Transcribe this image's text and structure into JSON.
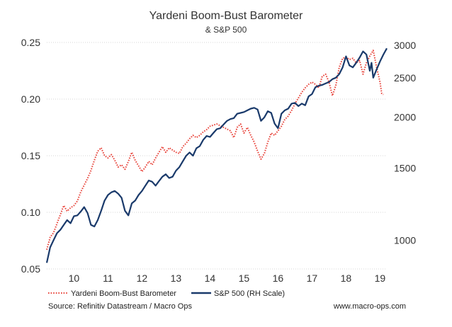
{
  "chart_data": {
    "type": "line",
    "title": "Yardeni Boom-Bust Barometer",
    "subtitle": "& S&P 500",
    "x_ticks": [
      "10",
      "11",
      "12",
      "13",
      "14",
      "15",
      "16",
      "17",
      "18",
      "19"
    ],
    "x_tick_values": [
      10,
      11,
      12,
      13,
      14,
      15,
      16,
      17,
      18,
      19
    ],
    "xlim": [
      9.2,
      19.2
    ],
    "left_axis": {
      "ticks": [
        "0.05",
        "0.10",
        "0.15",
        "0.20",
        "0.25"
      ],
      "tick_values": [
        0.05,
        0.1,
        0.15,
        0.2,
        0.25
      ],
      "ylim": [
        0.05,
        0.25
      ]
    },
    "right_axis": {
      "scale": "log",
      "ticks": [
        "1000",
        "1500",
        "2000",
        "2500",
        "3000"
      ],
      "tick_values": [
        1000,
        1500,
        2000,
        2500,
        3000
      ],
      "ylim": [
        850,
        3050
      ]
    },
    "grid": true,
    "series": [
      {
        "name": "Yardeni Boom-Bust Barometer",
        "axis": "left",
        "style": "dotted",
        "color": "#e8453c",
        "points": [
          [
            9.2,
            0.067
          ],
          [
            9.3,
            0.078
          ],
          [
            9.4,
            0.082
          ],
          [
            9.5,
            0.09
          ],
          [
            9.6,
            0.098
          ],
          [
            9.7,
            0.106
          ],
          [
            9.8,
            0.101
          ],
          [
            9.9,
            0.104
          ],
          [
            10.0,
            0.106
          ],
          [
            10.1,
            0.11
          ],
          [
            10.2,
            0.118
          ],
          [
            10.3,
            0.124
          ],
          [
            10.4,
            0.13
          ],
          [
            10.5,
            0.137
          ],
          [
            10.6,
            0.146
          ],
          [
            10.7,
            0.154
          ],
          [
            10.8,
            0.157
          ],
          [
            10.9,
            0.15
          ],
          [
            11.0,
            0.148
          ],
          [
            11.1,
            0.151
          ],
          [
            11.2,
            0.146
          ],
          [
            11.3,
            0.14
          ],
          [
            11.4,
            0.142
          ],
          [
            11.5,
            0.138
          ],
          [
            11.6,
            0.145
          ],
          [
            11.7,
            0.153
          ],
          [
            11.8,
            0.146
          ],
          [
            11.9,
            0.141
          ],
          [
            12.0,
            0.136
          ],
          [
            12.1,
            0.14
          ],
          [
            12.2,
            0.145
          ],
          [
            12.3,
            0.142
          ],
          [
            12.4,
            0.148
          ],
          [
            12.5,
            0.153
          ],
          [
            12.6,
            0.158
          ],
          [
            12.7,
            0.153
          ],
          [
            12.8,
            0.157
          ],
          [
            12.9,
            0.155
          ],
          [
            13.0,
            0.153
          ],
          [
            13.1,
            0.152
          ],
          [
            13.2,
            0.158
          ],
          [
            13.3,
            0.161
          ],
          [
            13.4,
            0.165
          ],
          [
            13.5,
            0.168
          ],
          [
            13.6,
            0.166
          ],
          [
            13.7,
            0.168
          ],
          [
            13.8,
            0.171
          ],
          [
            13.9,
            0.173
          ],
          [
            14.0,
            0.176
          ],
          [
            14.2,
            0.178
          ],
          [
            14.4,
            0.175
          ],
          [
            14.6,
            0.172
          ],
          [
            14.7,
            0.166
          ],
          [
            14.8,
            0.175
          ],
          [
            14.9,
            0.178
          ],
          [
            15.0,
            0.17
          ],
          [
            15.1,
            0.175
          ],
          [
            15.2,
            0.168
          ],
          [
            15.3,
            0.162
          ],
          [
            15.4,
            0.154
          ],
          [
            15.5,
            0.147
          ],
          [
            15.6,
            0.152
          ],
          [
            15.7,
            0.162
          ],
          [
            15.8,
            0.17
          ],
          [
            15.9,
            0.168
          ],
          [
            16.0,
            0.172
          ],
          [
            16.1,
            0.176
          ],
          [
            16.2,
            0.182
          ],
          [
            16.3,
            0.185
          ],
          [
            16.4,
            0.19
          ],
          [
            16.5,
            0.196
          ],
          [
            16.6,
            0.201
          ],
          [
            16.7,
            0.206
          ],
          [
            16.8,
            0.21
          ],
          [
            16.9,
            0.213
          ],
          [
            17.0,
            0.215
          ],
          [
            17.1,
            0.213
          ],
          [
            17.2,
            0.21
          ],
          [
            17.3,
            0.22
          ],
          [
            17.4,
            0.222
          ],
          [
            17.5,
            0.215
          ],
          [
            17.6,
            0.203
          ],
          [
            17.7,
            0.212
          ],
          [
            17.8,
            0.228
          ],
          [
            17.9,
            0.236
          ],
          [
            18.0,
            0.237
          ],
          [
            18.1,
            0.235
          ],
          [
            18.2,
            0.236
          ],
          [
            18.3,
            0.232
          ],
          [
            18.4,
            0.234
          ],
          [
            18.5,
            0.222
          ],
          [
            18.6,
            0.232
          ],
          [
            18.7,
            0.238
          ],
          [
            18.8,
            0.243
          ],
          [
            18.9,
            0.228
          ],
          [
            19.0,
            0.215
          ],
          [
            19.05,
            0.205
          ],
          [
            19.1,
            0.204
          ]
        ]
      },
      {
        "name": "S&P 500 (RH Scale)",
        "axis": "right",
        "style": "solid",
        "color": "#1a3a6b",
        "points": [
          [
            9.2,
            880
          ],
          [
            9.3,
            960
          ],
          [
            9.4,
            1000
          ],
          [
            9.5,
            1040
          ],
          [
            9.6,
            1060
          ],
          [
            9.7,
            1090
          ],
          [
            9.8,
            1120
          ],
          [
            9.9,
            1100
          ],
          [
            10.0,
            1145
          ],
          [
            10.1,
            1150
          ],
          [
            10.2,
            1175
          ],
          [
            10.3,
            1205
          ],
          [
            10.4,
            1165
          ],
          [
            10.5,
            1090
          ],
          [
            10.6,
            1080
          ],
          [
            10.7,
            1120
          ],
          [
            10.8,
            1180
          ],
          [
            10.9,
            1250
          ],
          [
            11.0,
            1290
          ],
          [
            11.1,
            1310
          ],
          [
            11.2,
            1320
          ],
          [
            11.3,
            1300
          ],
          [
            11.4,
            1270
          ],
          [
            11.5,
            1180
          ],
          [
            11.6,
            1150
          ],
          [
            11.7,
            1230
          ],
          [
            11.8,
            1250
          ],
          [
            11.9,
            1290
          ],
          [
            12.0,
            1320
          ],
          [
            12.1,
            1360
          ],
          [
            12.2,
            1400
          ],
          [
            12.3,
            1390
          ],
          [
            12.4,
            1360
          ],
          [
            12.5,
            1395
          ],
          [
            12.6,
            1430
          ],
          [
            12.7,
            1450
          ],
          [
            12.8,
            1420
          ],
          [
            12.9,
            1430
          ],
          [
            13.0,
            1480
          ],
          [
            13.1,
            1510
          ],
          [
            13.2,
            1560
          ],
          [
            13.3,
            1610
          ],
          [
            13.4,
            1640
          ],
          [
            13.5,
            1610
          ],
          [
            13.6,
            1680
          ],
          [
            13.7,
            1700
          ],
          [
            13.8,
            1760
          ],
          [
            13.9,
            1800
          ],
          [
            14.0,
            1790
          ],
          [
            14.1,
            1830
          ],
          [
            14.2,
            1870
          ],
          [
            14.3,
            1880
          ],
          [
            14.4,
            1920
          ],
          [
            14.5,
            1960
          ],
          [
            14.6,
            1980
          ],
          [
            14.7,
            1990
          ],
          [
            14.8,
            2040
          ],
          [
            14.9,
            2050
          ],
          [
            15.0,
            2060
          ],
          [
            15.1,
            2080
          ],
          [
            15.2,
            2100
          ],
          [
            15.3,
            2110
          ],
          [
            15.4,
            2090
          ],
          [
            15.5,
            1960
          ],
          [
            15.6,
            2000
          ],
          [
            15.7,
            2070
          ],
          [
            15.8,
            2050
          ],
          [
            15.9,
            1930
          ],
          [
            16.0,
            1880
          ],
          [
            16.1,
            2040
          ],
          [
            16.2,
            2080
          ],
          [
            16.3,
            2100
          ],
          [
            16.4,
            2160
          ],
          [
            16.5,
            2170
          ],
          [
            16.6,
            2130
          ],
          [
            16.7,
            2160
          ],
          [
            16.8,
            2140
          ],
          [
            16.9,
            2250
          ],
          [
            17.0,
            2280
          ],
          [
            17.1,
            2370
          ],
          [
            17.2,
            2390
          ],
          [
            17.3,
            2400
          ],
          [
            17.4,
            2420
          ],
          [
            17.5,
            2440
          ],
          [
            17.6,
            2480
          ],
          [
            17.7,
            2500
          ],
          [
            17.8,
            2550
          ],
          [
            17.9,
            2650
          ],
          [
            18.0,
            2820
          ],
          [
            18.1,
            2680
          ],
          [
            18.2,
            2650
          ],
          [
            18.3,
            2720
          ],
          [
            18.4,
            2800
          ],
          [
            18.5,
            2900
          ],
          [
            18.6,
            2850
          ],
          [
            18.7,
            2600
          ],
          [
            18.75,
            2720
          ],
          [
            18.8,
            2500
          ],
          [
            18.9,
            2620
          ],
          [
            19.0,
            2740
          ],
          [
            19.1,
            2850
          ],
          [
            19.2,
            2950
          ]
        ]
      }
    ],
    "legend_position": "bottom-left",
    "source": "Source: Refinitiv Datastream / Macro Ops",
    "website": "www.macro-ops.com"
  }
}
